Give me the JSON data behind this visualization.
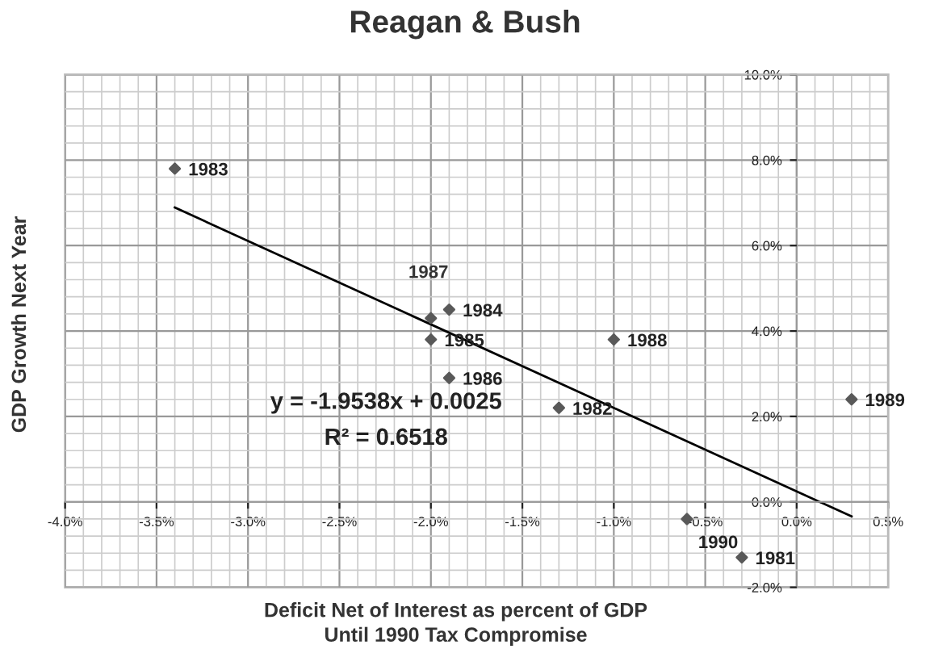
{
  "chart_data": {
    "type": "scatter",
    "title": "Reagan & Bush",
    "xlabel": "Deficit Net of Interest as percent of GDP\nUntil 1990 Tax Compromise",
    "ylabel": "GDP Growth Next Year",
    "x": [
      -0.3,
      -1.3,
      -3.4,
      -1.9,
      -2.0,
      -1.9,
      -2.0,
      -1.0,
      0.3,
      -0.6
    ],
    "series": [
      {
        "color": "#595959",
        "values": [
          -1.3,
          2.2,
          7.8,
          4.5,
          3.8,
          2.9,
          4.3,
          3.8,
          2.4,
          -0.4
        ],
        "marker": "diamond"
      },
      {
        "type": "line",
        "color": "#000000",
        "x": [
          -3.4,
          0.3
        ],
        "values": [
          6.89,
          -0.34
        ],
        "marker": "none",
        "line_style": "solid"
      }
    ],
    "annotations": [
      "y = -1.9538x + 0.0025",
      "R² = 0.6518",
      {
        "text": "1981",
        "x": -0.3,
        "y": -1.3
      },
      {
        "text": "1982",
        "x": -1.3,
        "y": 2.2
      },
      {
        "text": "1983",
        "x": -3.4,
        "y": 7.8
      },
      {
        "text": "1984",
        "x": -1.9,
        "y": 4.5
      },
      {
        "text": "1985",
        "x": -2.0,
        "y": 3.8
      },
      {
        "text": "1986",
        "x": -1.9,
        "y": 2.9
      },
      {
        "text": "1987",
        "x": -2.0,
        "y": 4.3
      },
      {
        "text": "1988",
        "x": -1.0,
        "y": 3.8
      },
      {
        "text": "1989",
        "x": 0.3,
        "y": 2.4
      },
      {
        "text": "1990",
        "x": -0.6,
        "y": -0.4
      }
    ],
    "xlim": [
      -4.0,
      0.5
    ],
    "ylim": [
      -2.0,
      10.0
    ],
    "xticks": [
      {
        "value": -4.0,
        "label": "-4.0%"
      },
      {
        "value": -3.5,
        "label": "-3.5%"
      },
      {
        "value": -3.0,
        "label": "-3.0%"
      },
      {
        "value": -2.5,
        "label": "-2.5%"
      },
      {
        "value": -2.0,
        "label": "-2.0%"
      },
      {
        "value": -1.5,
        "label": "-1.5%"
      },
      {
        "value": -1.0,
        "label": "-1.0%"
      },
      {
        "value": -0.5,
        "label": "-0.5%"
      },
      {
        "value": 0.0,
        "label": "0.0%"
      },
      {
        "value": 0.5,
        "label": "0.5%"
      }
    ],
    "yticks": [
      {
        "value": -2.0,
        "label": "-2.0%"
      },
      {
        "value": 0.0,
        "label": "0.0%"
      },
      {
        "value": 2.0,
        "label": "2.0%"
      },
      {
        "value": 4.0,
        "label": "4.0%"
      },
      {
        "value": 6.0,
        "label": "6.0%"
      },
      {
        "value": 8.0,
        "label": "8.0%"
      },
      {
        "value": 10.0,
        "label": "10.0%"
      }
    ],
    "grid": true,
    "legend": false
  }
}
